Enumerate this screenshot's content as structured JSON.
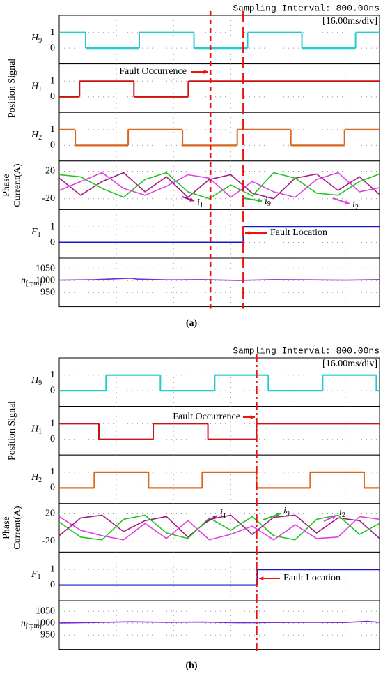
{
  "figures": [
    {
      "label": "(a)",
      "header": "Sampling Interval:  800.00ns",
      "timebase": "[16.00ms/div]",
      "group_label": "Position Signal",
      "current_label": [
        "Phase",
        "Current(A)"
      ],
      "fault_occurrence": "Fault Occurrence",
      "fault_location": "Fault Location",
      "xlim": [
        0,
        89.6
      ],
      "xticks": [
        16,
        32,
        48,
        64,
        80
      ],
      "fault_lines": [
        {
          "x": 42.3,
          "style": "short-dash"
        },
        {
          "x": 51.5,
          "style": "long-dash"
        }
      ],
      "panels": [
        {
          "name": [
            "H",
            "9"
          ],
          "kind": "step",
          "color": "#22cccc",
          "ylim": [
            -1,
            2.1
          ],
          "yticks": [
            0,
            1
          ],
          "x": [
            0,
            7.4,
            22.4,
            37.7,
            52.7,
            67.9,
            82.9
          ],
          "values": [
            1,
            0,
            1,
            0,
            1,
            0,
            1
          ]
        },
        {
          "name": [
            "H",
            "1"
          ],
          "kind": "step",
          "color": "#cc1111",
          "ylim": [
            -1,
            2.1
          ],
          "yticks": [
            0,
            1
          ],
          "x": [
            0,
            5.7,
            20.9,
            36.1
          ],
          "values": [
            0,
            1,
            0,
            1
          ]
        },
        {
          "name": [
            "H",
            "2"
          ],
          "kind": "step",
          "color": "#d9661a",
          "ylim": [
            -1,
            2.1
          ],
          "yticks": [
            0,
            1
          ],
          "x": [
            0,
            4.5,
            19.3,
            34.5,
            49.8,
            64.8,
            79.8
          ],
          "values": [
            1,
            0,
            1,
            0,
            1,
            0,
            1
          ]
        },
        {
          "kind": "current",
          "ylim": [
            -36,
            35
          ],
          "yticks": [
            20,
            -20
          ],
          "x": [
            0,
            6,
            12,
            18,
            24,
            30,
            36,
            42,
            48,
            54,
            60,
            66,
            72,
            78,
            84,
            89.6
          ],
          "series": [
            {
              "name": [
                "i",
                "1"
              ],
              "color": "#a01a80",
              "values": [
                10,
                -15,
                5,
                18,
                -10,
                12,
                -18,
                8,
                15,
                -12,
                -20,
                10,
                16,
                -8,
                12,
                -14
              ]
            },
            {
              "name": [
                "i",
                "9"
              ],
              "color": "#22c322",
              "values": [
                15,
                12,
                -5,
                -18,
                8,
                18,
                -10,
                -20,
                0,
                -16,
                18,
                10,
                -12,
                -15,
                5,
                16
              ]
            },
            {
              "name": [
                "i",
                "2"
              ],
              "color": "#e040e0",
              "values": [
                -8,
                5,
                18,
                -5,
                -15,
                -2,
                15,
                10,
                -18,
                5,
                -10,
                -18,
                8,
                18,
                -10,
                -4
              ]
            }
          ]
        },
        {
          "name": [
            "F",
            "1"
          ],
          "kind": "step",
          "color": "#1a1acc",
          "ylim": [
            -1,
            2.1
          ],
          "yticks": [
            0,
            1
          ],
          "x": [
            0,
            51.5
          ],
          "values": [
            0,
            1
          ]
        },
        {
          "name": [
            "n",
            "(rpm)"
          ],
          "kind": "line",
          "color": "#7a2ad6",
          "ylim": [
            890,
            1095
          ],
          "yticks": [
            950,
            1000,
            1050
          ],
          "x": [
            0,
            10,
            20,
            22,
            30,
            40,
            50,
            60,
            70,
            80,
            89.6
          ],
          "values": [
            1002,
            1004,
            1010,
            1006,
            1003,
            1004,
            1001,
            1004,
            1003,
            1002,
            1004
          ]
        }
      ]
    },
    {
      "label": "(b)",
      "header": "Sampling Interval:  800.00ns",
      "timebase": "[16.00ms/div]",
      "group_label": "Position Signal",
      "current_label": [
        "Phase",
        "Current(A)"
      ],
      "fault_occurrence": "Fault Occurrence",
      "fault_location": "Fault Location",
      "xlim": [
        0,
        89.6
      ],
      "xticks": [
        16,
        32,
        48,
        64,
        80
      ],
      "fault_lines": [
        {
          "x": 55.2,
          "style": "dash-dot"
        }
      ],
      "panels": [
        {
          "name": [
            "H",
            "9"
          ],
          "kind": "step",
          "color": "#22cccc",
          "ylim": [
            -1,
            2.1
          ],
          "yticks": [
            0,
            1
          ],
          "x": [
            0,
            13.1,
            28.3,
            43.5,
            58.5,
            73.7,
            88.7
          ],
          "values": [
            0,
            1,
            0,
            1,
            0,
            1,
            0
          ]
        },
        {
          "name": [
            "H",
            "1"
          ],
          "kind": "step",
          "color": "#cc1111",
          "ylim": [
            -1,
            2.1
          ],
          "yticks": [
            0,
            1
          ],
          "x": [
            0,
            11.1,
            26.3,
            41.6,
            55.2
          ],
          "values": [
            1,
            0,
            1,
            0,
            1
          ]
        },
        {
          "name": [
            "H",
            "2"
          ],
          "kind": "step",
          "color": "#d9661a",
          "ylim": [
            -1,
            2.1
          ],
          "yticks": [
            0,
            1
          ],
          "x": [
            0,
            9.8,
            25.0,
            40.0,
            55.2,
            70.2,
            85.3
          ],
          "values": [
            0,
            1,
            0,
            1,
            0,
            1,
            0
          ]
        },
        {
          "kind": "current",
          "ylim": [
            -36,
            35
          ],
          "yticks": [
            20,
            -20
          ],
          "x": [
            0,
            6,
            12,
            18,
            24,
            30,
            36,
            42,
            48,
            54,
            60,
            66,
            72,
            78,
            84,
            89.6
          ],
          "series": [
            {
              "name": [
                "i",
                "1"
              ],
              "color": "#a01a80",
              "values": [
                -12,
                14,
                18,
                -6,
                10,
                16,
                -14,
                12,
                18,
                -10,
                15,
                18,
                -8,
                14,
                10,
                -16
              ]
            },
            {
              "name": [
                "i",
                "9"
              ],
              "color": "#22c322",
              "values": [
                8,
                -14,
                -18,
                12,
                18,
                -8,
                -16,
                14,
                -4,
                16,
                -12,
                -18,
                12,
                18,
                -10,
                6
              ]
            },
            {
              "name": [
                "i",
                "2"
              ],
              "color": "#e040e0",
              "values": [
                16,
                -4,
                -12,
                -18,
                6,
                -16,
                10,
                -18,
                -10,
                2,
                -18,
                4,
                -16,
                -14,
                16,
                12
              ]
            }
          ]
        },
        {
          "name": [
            "F",
            "1"
          ],
          "kind": "step",
          "color": "#1a1acc",
          "ylim": [
            -1,
            2.1
          ],
          "yticks": [
            0,
            1
          ],
          "x": [
            0,
            55.4
          ],
          "values": [
            0,
            1
          ]
        },
        {
          "name": [
            "n",
            "(rpm)"
          ],
          "kind": "line",
          "color": "#7a2ad6",
          "ylim": [
            890,
            1095
          ],
          "yticks": [
            950,
            1000,
            1050
          ],
          "x": [
            0,
            10,
            20,
            30,
            40,
            50,
            60,
            70,
            80,
            86,
            89.6
          ],
          "values": [
            1001,
            1003,
            1006,
            1004,
            1005,
            1002,
            1003,
            1004,
            1003,
            1008,
            1004
          ]
        }
      ]
    }
  ]
}
